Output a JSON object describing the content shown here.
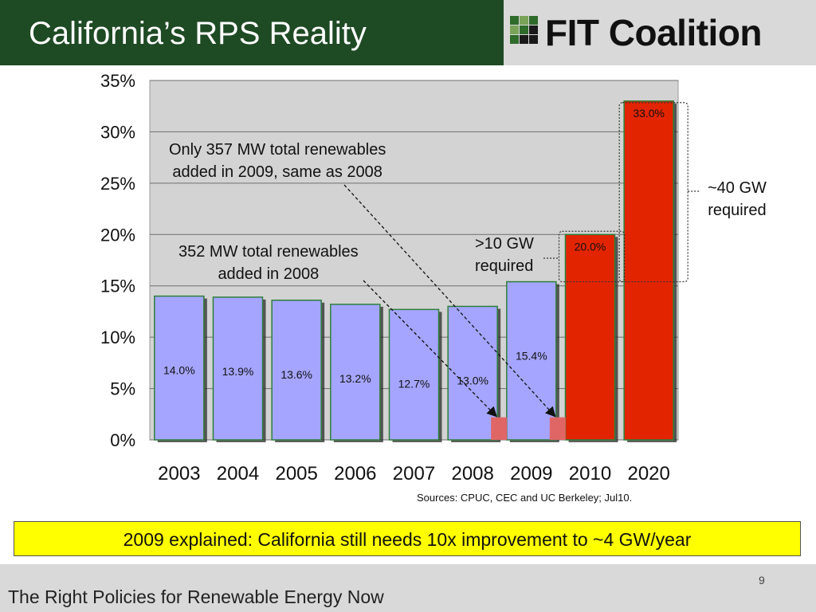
{
  "slide": {
    "title": "California’s RPS Reality",
    "logo_text": "FIT Coalition",
    "sources": "Sources:  CPUC, CEC and UC Berkeley; Jul10.",
    "banner": "2009 explained: California still needs 10x improvement to ~4 GW/year",
    "footer": "The Right Policies for Renewable Energy Now",
    "page_number": "9"
  },
  "annotations": {
    "note_2009_line1": "Only 357 MW total renewables",
    "note_2009_line2": "added in 2009, same as 2008",
    "note_2008_line1": "352 MW total renewables",
    "note_2008_line2": "added in 2008",
    "note_10gw_line1": ">10 GW",
    "note_10gw_line2": "required",
    "note_40gw_line1": "~40 GW",
    "note_40gw_line2": "required"
  },
  "chart_data": {
    "type": "bar",
    "categories": [
      "2003",
      "2004",
      "2005",
      "2006",
      "2007",
      "2008",
      "2009",
      "2010",
      "2020"
    ],
    "values": [
      14.0,
      13.9,
      13.6,
      13.2,
      12.7,
      13.0,
      15.4,
      20.0,
      33.0
    ],
    "data_labels": [
      "14.0%",
      "13.9%",
      "13.6%",
      "13.2%",
      "12.7%",
      "13.0%",
      "15.4%",
      "20.0%",
      "33.0%"
    ],
    "bar_colors": [
      "#a5a5ff",
      "#a5a5ff",
      "#a5a5ff",
      "#a5a5ff",
      "#a5a5ff",
      "#a5a5ff",
      "#a5a5ff",
      "#e32400",
      "#e32400"
    ],
    "added_segments": [
      {
        "category": "2008",
        "value": 2.2
      },
      {
        "category": "2009",
        "value": 2.2
      }
    ],
    "added_segment_color": "#e06666",
    "ylim": [
      0,
      35
    ],
    "yticks": [
      0,
      5,
      10,
      15,
      20,
      25,
      30,
      35
    ],
    "ytick_labels": [
      "0%",
      "5%",
      "10%",
      "15%",
      "20%",
      "25%",
      "30%",
      "35%"
    ],
    "grid": true,
    "plot_background": "#d3d3d3",
    "xlabel": "",
    "ylabel": ""
  }
}
